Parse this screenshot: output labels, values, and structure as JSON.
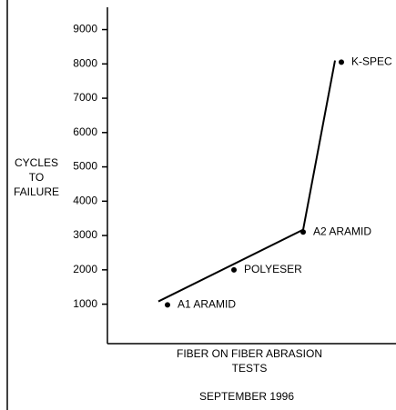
{
  "chart_data": {
    "type": "scatter",
    "ylabel": [
      "CYCLES",
      "TO",
      "FAILURE"
    ],
    "xlabel": [
      "FIBER ON FIBER ABRASION",
      "TESTS"
    ],
    "subtitle": "SEPTEMBER 1996",
    "categories": [
      "A1 ARAMID",
      "POLYESER",
      "A2 ARAMID",
      "K-SPEC"
    ],
    "values": [
      980,
      2000,
      3100,
      8050
    ],
    "color": "#000000",
    "line": {
      "values": [
        1080,
        3170,
        8100
      ],
      "color": "#000000"
    },
    "ylim": [
      -150,
      9650
    ],
    "yticks": [
      1000,
      2000,
      3000,
      4000,
      5000,
      6000,
      7000,
      8000,
      9000
    ]
  }
}
